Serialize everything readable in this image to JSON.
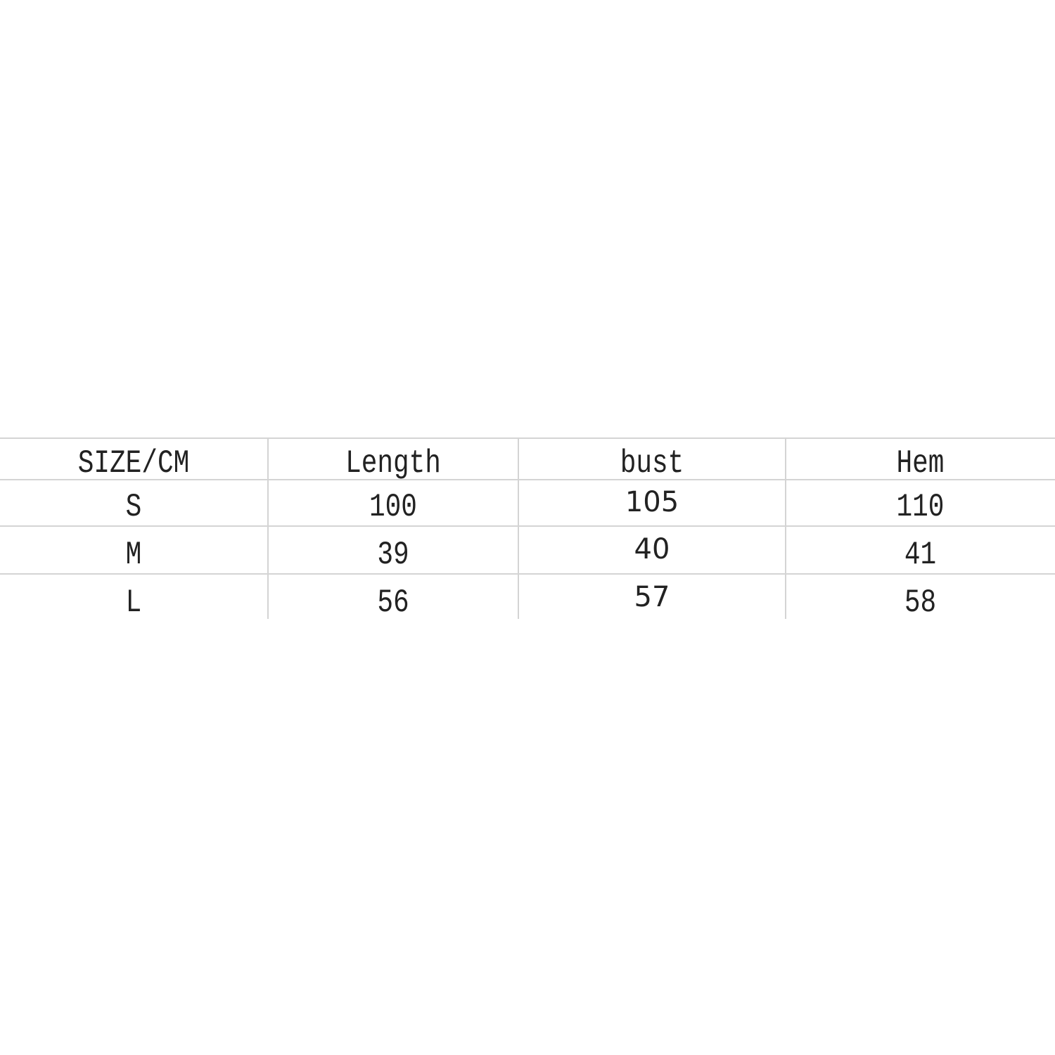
{
  "size_table": {
    "headers": [
      "SIZE/CM",
      "Length",
      "bust",
      "Hem"
    ],
    "rows": [
      [
        "S",
        "100",
        "105",
        "110"
      ],
      [
        "M",
        "39",
        "40",
        "41"
      ],
      [
        "L",
        "56",
        "57",
        "58"
      ]
    ]
  }
}
